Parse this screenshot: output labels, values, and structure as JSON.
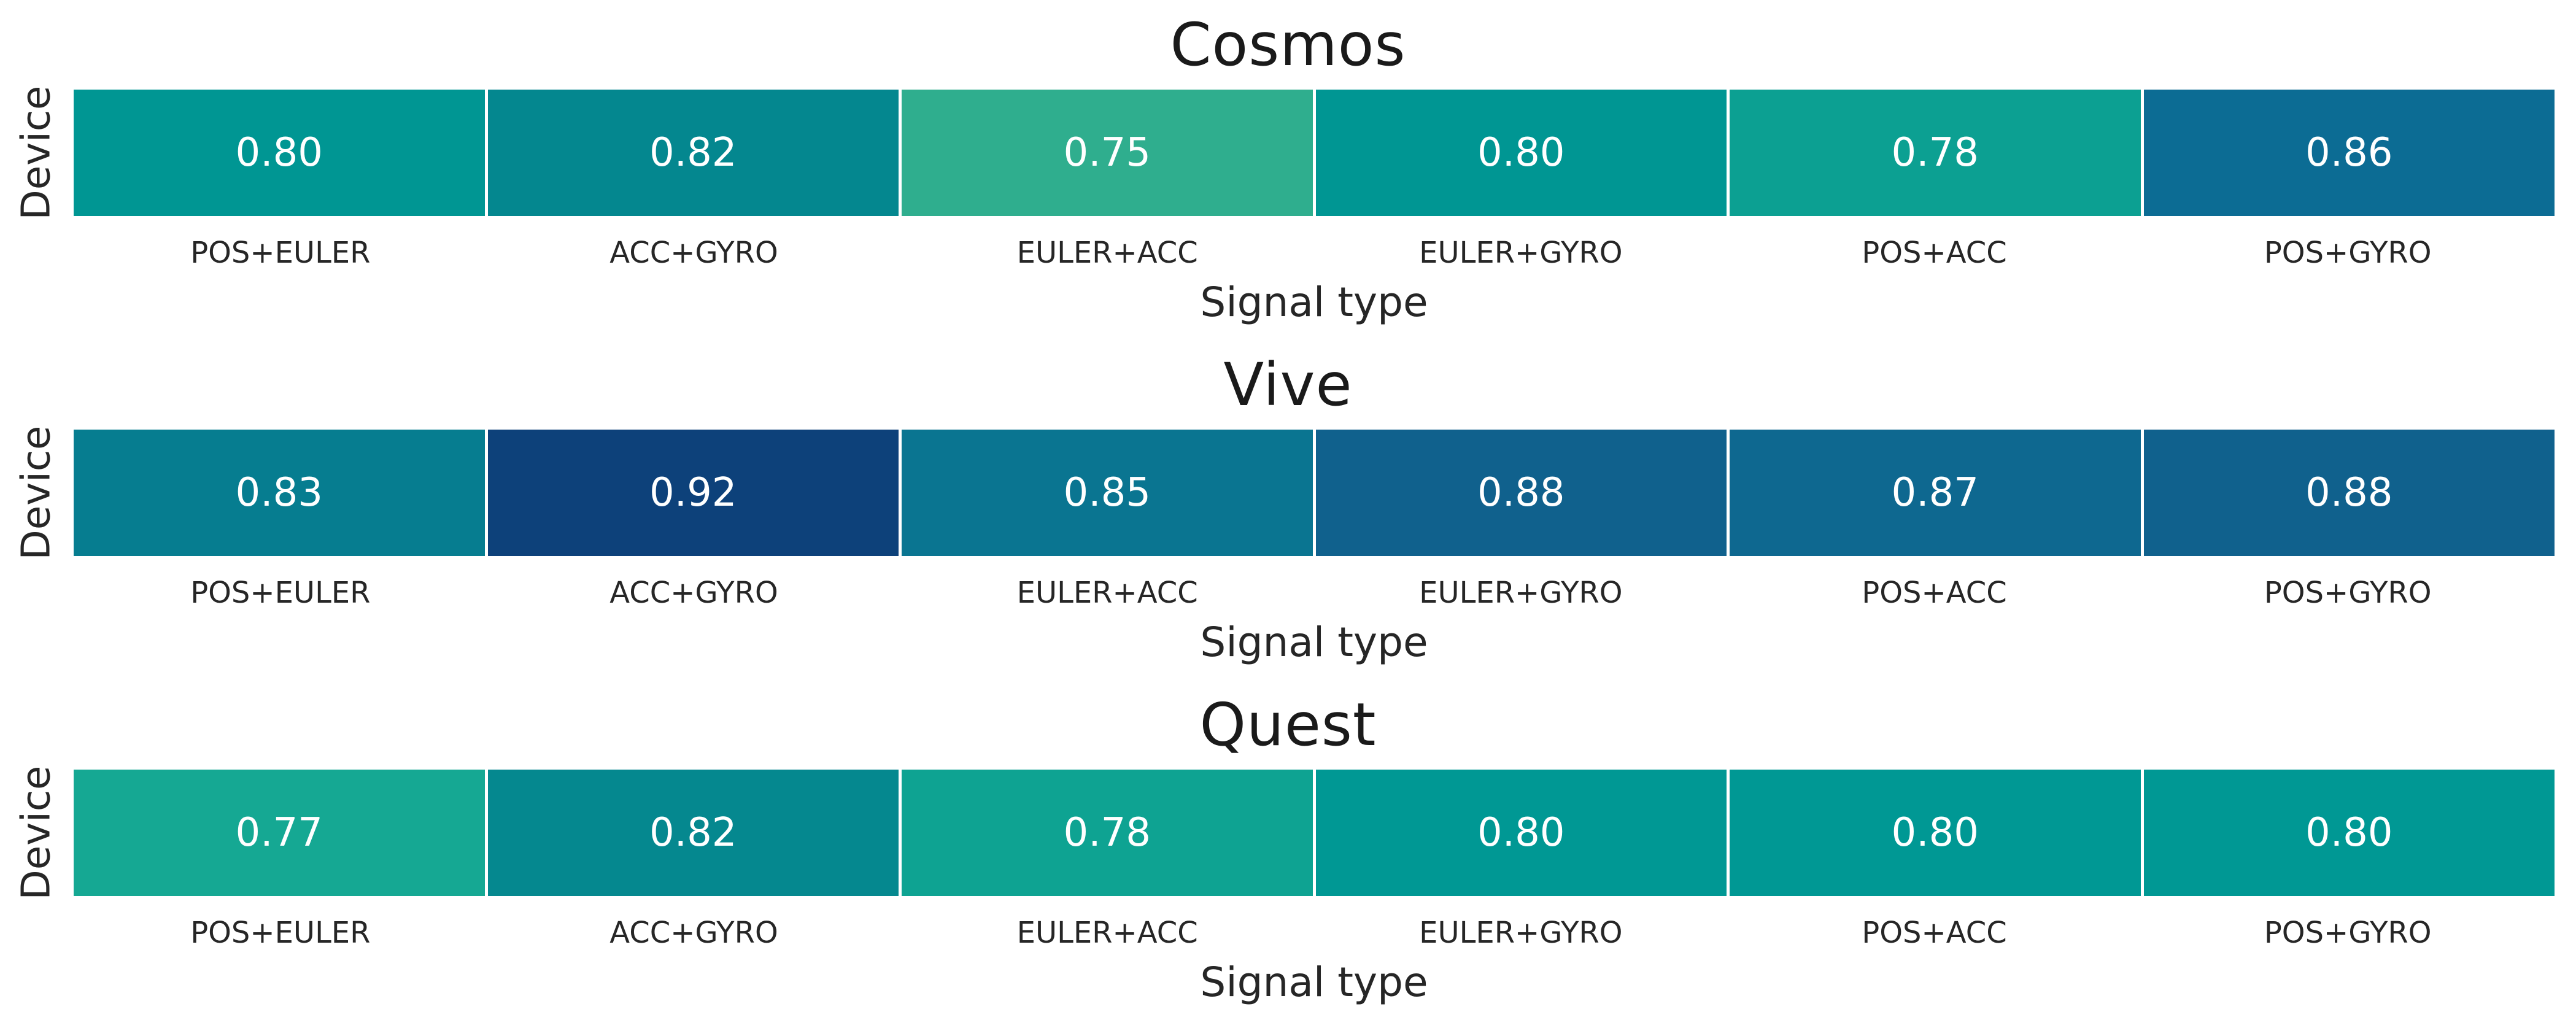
{
  "page": {
    "background_color": "#ffffff",
    "label_text_color": "#262626",
    "annotation_text_color": "#ffffff"
  },
  "chart_data": [
    {
      "type": "heatmap",
      "title": "Cosmos",
      "xlabel": "Signal type",
      "ylabel": "Device",
      "legend": "none",
      "grid": false,
      "categories": [
        "POS+EULER",
        "ACC+GYRO",
        "EULER+ACC",
        "EULER+GYRO",
        "POS+ACC",
        "POS+GYRO"
      ],
      "values": [
        0.8,
        0.82,
        0.75,
        0.8,
        0.78,
        0.86
      ],
      "cells": [
        {
          "label": "0.80",
          "color": "#009693"
        },
        {
          "label": "0.82",
          "color": "#04878F"
        },
        {
          "label": "0.75",
          "color": "#2FAE8E"
        },
        {
          "label": "0.80",
          "color": "#009693"
        },
        {
          "label": "0.78",
          "color": "#0CA092"
        },
        {
          "label": "0.86",
          "color": "#0C6C94"
        }
      ]
    },
    {
      "type": "heatmap",
      "title": "Vive",
      "xlabel": "Signal type",
      "ylabel": "Device",
      "legend": "none",
      "grid": false,
      "categories": [
        "POS+EULER",
        "ACC+GYRO",
        "EULER+ACC",
        "EULER+GYRO",
        "POS+ACC",
        "POS+GYRO"
      ],
      "values": [
        0.83,
        0.92,
        0.85,
        0.88,
        0.87,
        0.88
      ],
      "cells": [
        {
          "label": "0.83",
          "color": "#067D90"
        },
        {
          "label": "0.92",
          "color": "#0D417A"
        },
        {
          "label": "0.85",
          "color": "#0A7591"
        },
        {
          "label": "0.88",
          "color": "#10618D"
        },
        {
          "label": "0.87",
          "color": "#0E6890"
        },
        {
          "label": "0.88",
          "color": "#10618D"
        }
      ]
    },
    {
      "type": "heatmap",
      "title": "Quest",
      "xlabel": "Signal type",
      "ylabel": "Device",
      "legend": "none",
      "grid": false,
      "categories": [
        "POS+EULER",
        "ACC+GYRO",
        "EULER+ACC",
        "EULER+GYRO",
        "POS+ACC",
        "POS+GYRO"
      ],
      "values": [
        0.77,
        0.82,
        0.78,
        0.8,
        0.8,
        0.8
      ],
      "cells": [
        {
          "label": "0.77",
          "color": "#15A893"
        },
        {
          "label": "0.82",
          "color": "#05888F"
        },
        {
          "label": "0.78",
          "color": "#0EA392"
        },
        {
          "label": "0.80",
          "color": "#009894"
        },
        {
          "label": "0.80",
          "color": "#009894"
        },
        {
          "label": "0.80",
          "color": "#009894"
        }
      ]
    }
  ]
}
